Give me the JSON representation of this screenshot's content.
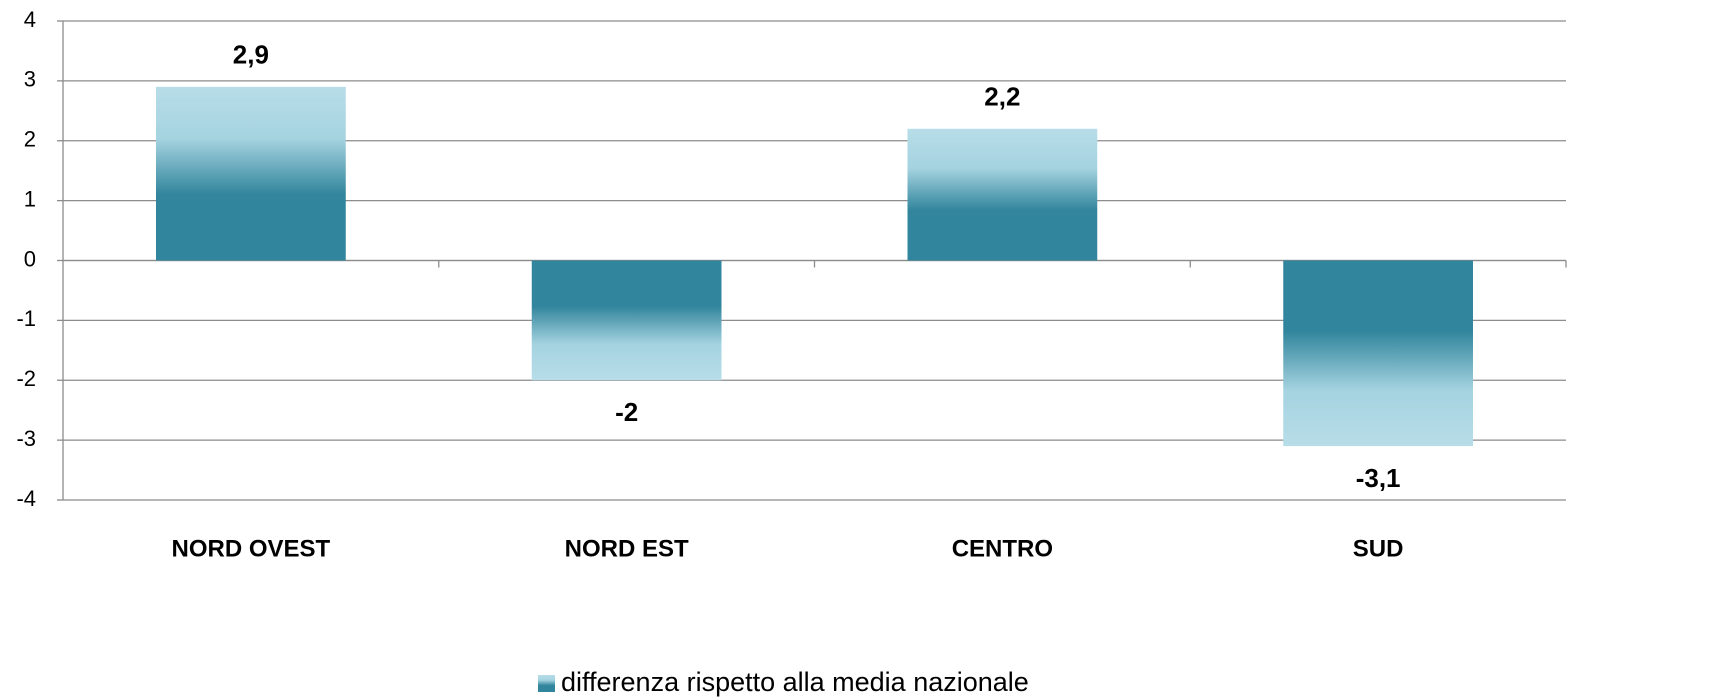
{
  "chart_data": {
    "type": "bar",
    "categories": [
      "NORD OVEST",
      "NORD EST",
      "CENTRO",
      "SUD"
    ],
    "series": [
      {
        "name": "differenza rispetto alla media nazionale",
        "color": "#31859c",
        "values": [
          2.9,
          -2,
          2.2,
          -3.1
        ],
        "value_labels": [
          "2,9",
          "-2",
          "2,2",
          "-3,1"
        ]
      }
    ],
    "ylim": [
      -4,
      4
    ],
    "yticks": [
      -4,
      -3,
      -2,
      -1,
      0,
      1,
      2,
      3,
      4
    ],
    "grid": true,
    "legend": "bottom"
  }
}
